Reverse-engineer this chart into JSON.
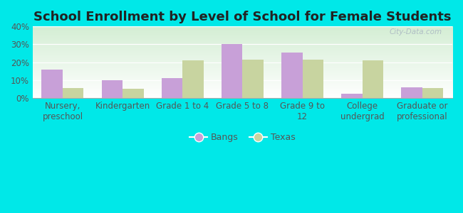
{
  "title": "School Enrollment by Level of School for Female Students",
  "categories": [
    "Nursery,\npreschool",
    "Kindergarten",
    "Grade 1 to 4",
    "Grade 5 to 8",
    "Grade 9 to\n12",
    "College\nundergrad",
    "Graduate or\nprofessional"
  ],
  "bangs_values": [
    16,
    10,
    11,
    30,
    25.5,
    2.5,
    6
  ],
  "texas_values": [
    5.5,
    5,
    21,
    21.5,
    21.5,
    21,
    5.5
  ],
  "bangs_color": "#c8a0d8",
  "texas_color": "#c8d4a0",
  "background_color": "#00e8e8",
  "ylim": [
    0,
    40
  ],
  "yticks": [
    0,
    10,
    20,
    30,
    40
  ],
  "ytick_labels": [
    "0%",
    "10%",
    "20%",
    "30%",
    "40%"
  ],
  "legend_bangs": "Bangs",
  "legend_texas": "Texas",
  "bar_width": 0.35,
  "title_fontsize": 13,
  "tick_fontsize": 8.5,
  "legend_fontsize": 9
}
